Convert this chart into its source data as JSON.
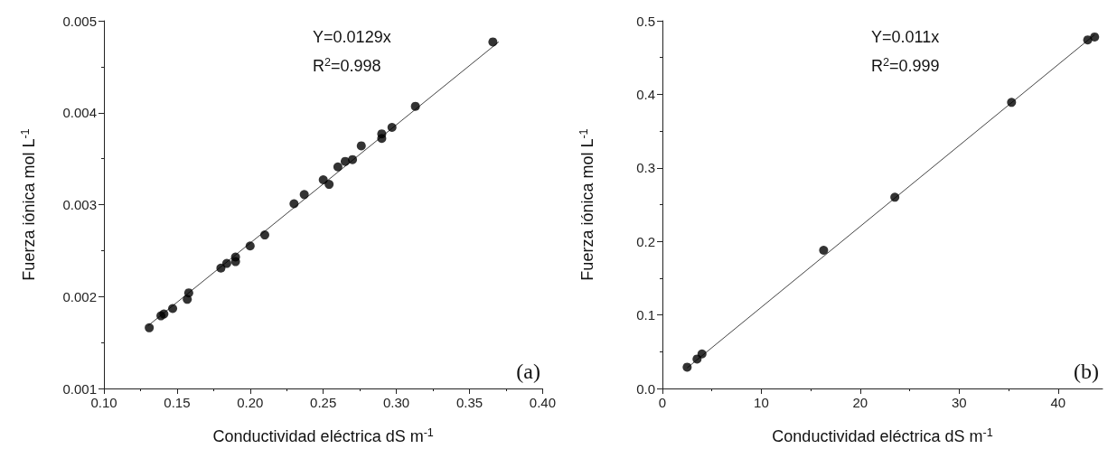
{
  "chart_data": [
    {
      "type": "scatter",
      "xlabel": "Conductividad eléctrica dS m$^{-1}$",
      "ylabel": "Fuerza iónica mol L$^{-1}$",
      "xlim": [
        0.1,
        0.4
      ],
      "ylim": [
        0.001,
        0.005
      ],
      "xticks": [
        {
          "value": 0.1,
          "label": "0.10"
        },
        {
          "value": 0.15,
          "label": "0.15"
        },
        {
          "value": 0.2,
          "label": "0.20"
        },
        {
          "value": 0.25,
          "label": "0.25"
        },
        {
          "value": 0.3,
          "label": "0.30"
        },
        {
          "value": 0.35,
          "label": "0.35"
        },
        {
          "value": 0.4,
          "label": "0.40"
        }
      ],
      "yticks": [
        0.001,
        0.002,
        0.003,
        0.004,
        0.005
      ],
      "grid": false,
      "marker": "circle",
      "annotations": [
        "Y=0.0129x",
        "R$^{2}$=0.998",
        "(a)"
      ],
      "series": [
        {
          "color": "#000000",
          "x": [
            0.131,
            0.139,
            0.141,
            0.147,
            0.157,
            0.158,
            0.18,
            0.184,
            0.19,
            0.19,
            0.2,
            0.21,
            0.23,
            0.237,
            0.25,
            0.254,
            0.26,
            0.265,
            0.27,
            0.276,
            0.29,
            0.29,
            0.297,
            0.313,
            0.366
          ],
          "values": [
            0.00166,
            0.00179,
            0.00181,
            0.00187,
            0.00197,
            0.00204,
            0.00231,
            0.00236,
            0.00243,
            0.00238,
            0.00255,
            0.00267,
            0.00301,
            0.00311,
            0.00327,
            0.00322,
            0.00341,
            0.00347,
            0.00349,
            0.00364,
            0.00377,
            0.00372,
            0.00384,
            0.00407,
            0.00477
          ]
        },
        {
          "type": "line",
          "color": "#444444",
          "marker": "none",
          "x": [
            0.13,
            0.37
          ],
          "values": [
            0.00168,
            0.00477
          ]
        }
      ]
    },
    {
      "type": "scatter",
      "xlabel": "Conductividad eléctrica dS m$^{-1}$",
      "ylabel": "Fuerza iónica mol L$^{-1}$",
      "xlim": [
        0,
        44.5
      ],
      "ylim": [
        0,
        0.5
      ],
      "xticks": [
        0,
        10,
        20,
        30,
        40
      ],
      "yticks": [
        {
          "value": 0,
          "label": "0.0"
        },
        0.1,
        0.2,
        0.3,
        0.4,
        0.5
      ],
      "grid": false,
      "marker": "circle",
      "annotations": [
        "Y=0.011x",
        "R$^{2}$=0.999",
        "(b)"
      ],
      "series": [
        {
          "color": "#000000",
          "x": [
            2.5,
            3.5,
            4.0,
            16.3,
            23.5,
            35.3,
            43.0,
            43.7
          ],
          "values": [
            0.029,
            0.04,
            0.047,
            0.188,
            0.26,
            0.389,
            0.474,
            0.478
          ]
        },
        {
          "type": "line",
          "color": "#444444",
          "marker": "none",
          "x": [
            2.5,
            43.7
          ],
          "values": [
            0.028,
            0.481
          ]
        }
      ]
    }
  ]
}
